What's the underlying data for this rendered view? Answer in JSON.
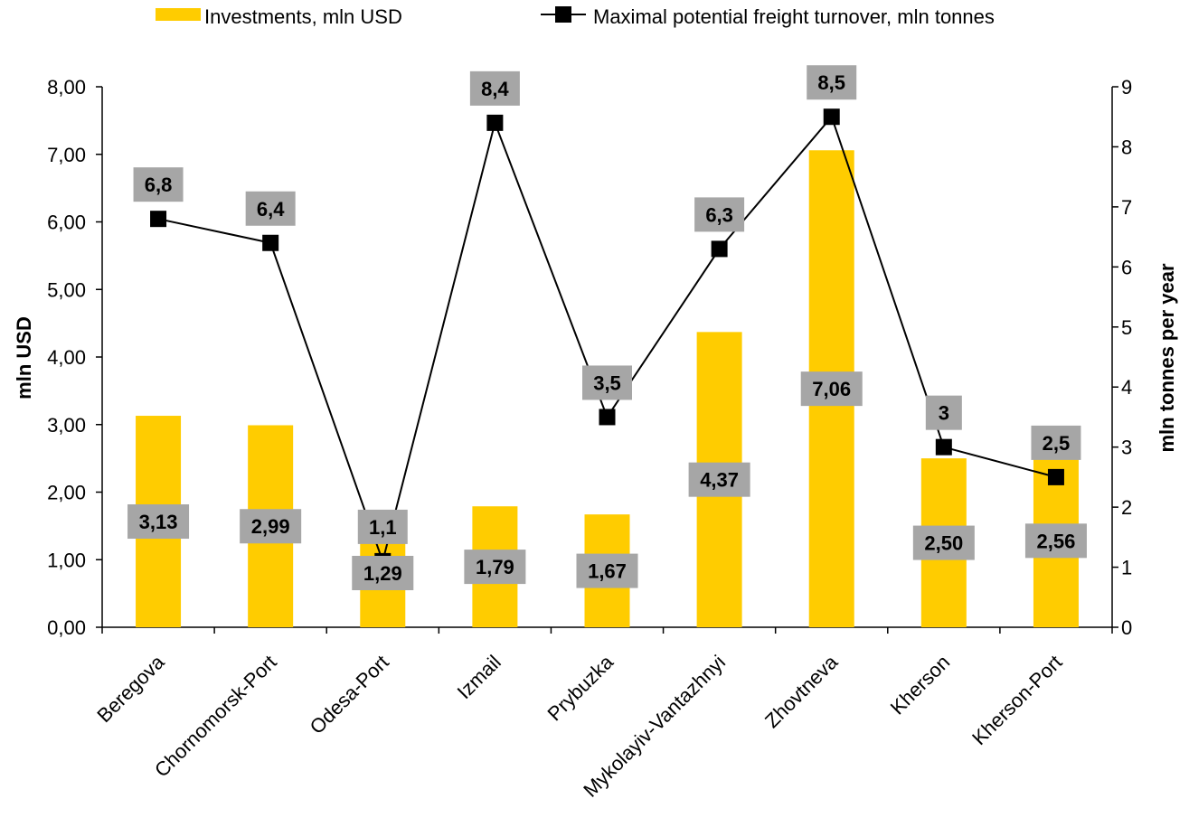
{
  "chart_data": {
    "type": "bar",
    "categories": [
      "Beregova",
      "Chornomorsk-Port",
      "Odesa-Port",
      "Izmail",
      "Prybuzka",
      "Mykolayiv-Vantazhnyi",
      "Zhovtneva",
      "Kherson",
      "Kherson-Port"
    ],
    "series": [
      {
        "name": "Investments, mln USD",
        "type": "bar",
        "axis": "left",
        "color": "#FFCC00",
        "values": [
          3.13,
          2.99,
          1.29,
          1.79,
          1.67,
          4.37,
          7.06,
          2.5,
          2.56
        ],
        "labels": [
          "3,13",
          "2,99",
          "1,29",
          "1,79",
          "1,67",
          "4,37",
          "7,06",
          "2,50",
          "2,56"
        ]
      },
      {
        "name": "Maximal potential freight turnover, mln tonnes",
        "type": "line",
        "axis": "right",
        "color": "#000000",
        "marker": "square",
        "values": [
          6.8,
          6.4,
          1.1,
          8.4,
          3.5,
          6.3,
          8.5,
          3.0,
          2.5
        ],
        "labels": [
          "6,8",
          "6,4",
          "1,1",
          "8,4",
          "3,5",
          "6,3",
          "8,5",
          "3",
          "2,5"
        ]
      }
    ],
    "ylabel": "mln USD",
    "y2label": "mln tonnes per year",
    "xlabel": "",
    "ylim": [
      0,
      8
    ],
    "y2lim": [
      0,
      9
    ],
    "yticks": [
      "0,00",
      "1,00",
      "2,00",
      "3,00",
      "4,00",
      "5,00",
      "6,00",
      "7,00",
      "8,00"
    ],
    "y2ticks": [
      "0",
      "1",
      "2",
      "3",
      "4",
      "5",
      "6",
      "7",
      "8",
      "9"
    ],
    "grid": false,
    "legend_position": "top",
    "label_box_color": "#A6A6A6"
  }
}
